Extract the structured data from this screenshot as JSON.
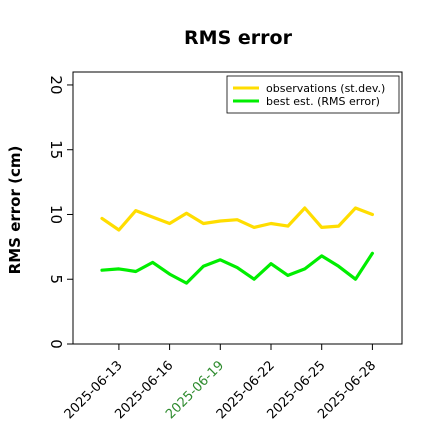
{
  "chart_data": {
    "type": "line",
    "title": "RMS error",
    "xlabel": "",
    "ylabel": "RMS error (cm)",
    "ylim": [
      0,
      21
    ],
    "yticks": [
      0,
      5,
      10,
      15,
      20
    ],
    "x": [
      "2025-06-12",
      "2025-06-13",
      "2025-06-14",
      "2025-06-15",
      "2025-06-16",
      "2025-06-17",
      "2025-06-18",
      "2025-06-19",
      "2025-06-20",
      "2025-06-21",
      "2025-06-22",
      "2025-06-23",
      "2025-06-24",
      "2025-06-25",
      "2025-06-26",
      "2025-06-27",
      "2025-06-28"
    ],
    "xticks": [
      {
        "label": "2025-06-13",
        "color": "#000000"
      },
      {
        "label": "2025-06-16",
        "color": "#000000"
      },
      {
        "label": "2025-06-19",
        "color": "#2e8b2e"
      },
      {
        "label": "2025-06-22",
        "color": "#000000"
      },
      {
        "label": "2025-06-25",
        "color": "#000000"
      },
      {
        "label": "2025-06-28",
        "color": "#000000"
      }
    ],
    "series": [
      {
        "name": "observations (st.dev.)",
        "color": "#ffdd00",
        "values": [
          9.7,
          8.8,
          10.3,
          9.8,
          9.3,
          10.1,
          9.3,
          9.5,
          9.6,
          9.0,
          9.3,
          9.1,
          10.5,
          9.0,
          9.1,
          10.5,
          10.0
        ]
      },
      {
        "name": "best est. (RMS error)",
        "color": "#00ee00",
        "values": [
          5.7,
          5.8,
          5.6,
          6.3,
          5.4,
          4.7,
          6.0,
          6.5,
          5.9,
          5.0,
          6.2,
          5.3,
          5.8,
          6.8,
          6.0,
          5.0,
          7.0
        ]
      }
    ],
    "grid": false,
    "legend_position": "top-right"
  }
}
